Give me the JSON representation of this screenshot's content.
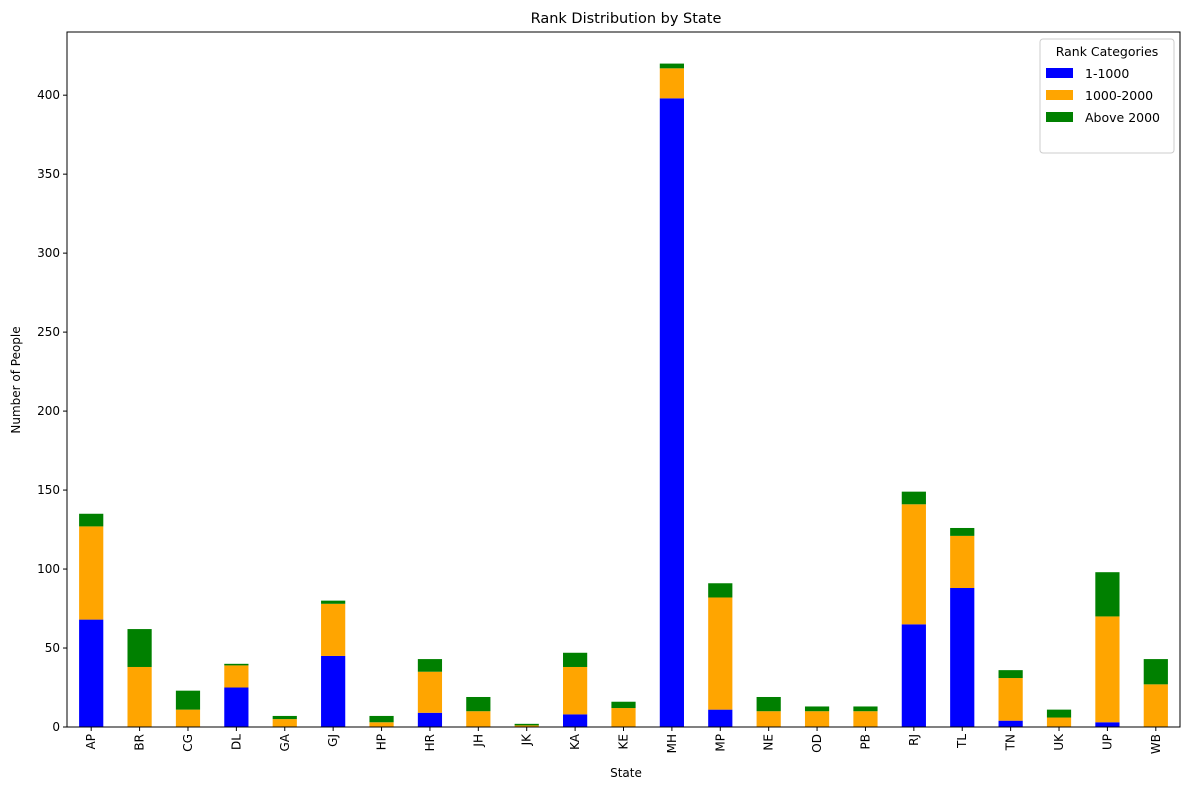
{
  "chart_data": {
    "type": "bar",
    "stacked": true,
    "title": "Rank Distribution by State",
    "xlabel": "State",
    "ylabel": "Number of People",
    "ylim": [
      0,
      440
    ],
    "yticks": [
      0,
      50,
      100,
      150,
      200,
      250,
      300,
      350,
      400
    ],
    "categories": [
      "AP",
      "BR",
      "CG",
      "DL",
      "GA",
      "GJ",
      "HP",
      "HR",
      "JH",
      "JK",
      "KA",
      "KE",
      "MH",
      "MP",
      "NE",
      "OD",
      "PB",
      "RJ",
      "TL",
      "TN",
      "UK",
      "UP",
      "WB"
    ],
    "series": [
      {
        "name": "1-1000",
        "color": "#0000ff",
        "values": [
          68,
          0,
          0,
          25,
          0,
          45,
          0,
          9,
          0,
          0,
          8,
          0,
          398,
          11,
          0,
          0,
          0,
          65,
          88,
          4,
          0,
          3,
          0
        ]
      },
      {
        "name": "1000-2000",
        "color": "#ffa500",
        "values": [
          59,
          38,
          11,
          14,
          5,
          33,
          3,
          26,
          10,
          1,
          30,
          12,
          19,
          71,
          10,
          10,
          10,
          76,
          33,
          27,
          6,
          67,
          27
        ]
      },
      {
        "name": "Above 2000",
        "color": "#008000",
        "values": [
          8,
          24,
          12,
          1,
          2,
          2,
          4,
          8,
          9,
          1,
          9,
          4,
          3,
          9,
          9,
          3,
          3,
          8,
          5,
          5,
          5,
          28,
          16
        ]
      }
    ],
    "legend": {
      "title": "Rank Categories",
      "placement": "top-right"
    },
    "grid": false
  }
}
